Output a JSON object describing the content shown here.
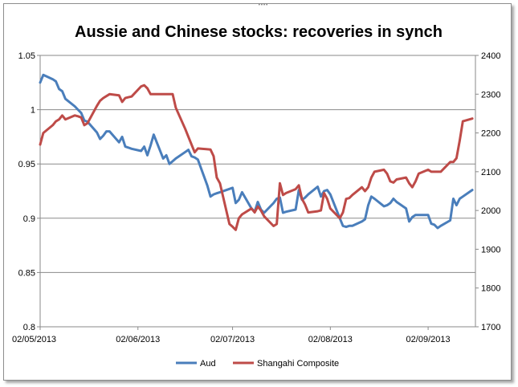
{
  "chart_data": {
    "type": "line",
    "title": "Aussie and Chinese stocks: recoveries in synch",
    "x_tick_labels": [
      "02/05/2013",
      "02/06/2013",
      "02/07/2013",
      "02/08/2013",
      "02/09/2013"
    ],
    "ylim_left": [
      0.8,
      1.05
    ],
    "ylim_right": [
      1700,
      2400
    ],
    "y_left_tick_labels": [
      "0.8",
      "0.85",
      "0.9",
      "0.95",
      "1",
      "1.05"
    ],
    "y_right_tick_labels": [
      "1700",
      "1800",
      "1900",
      "2000",
      "2100",
      "2200",
      "2300",
      "2400"
    ],
    "gridlines": "horizontal",
    "legend_position": "bottom",
    "series": [
      {
        "name": "Aud",
        "axis": "left",
        "color": "#4a7ebb",
        "points": [
          [
            "02/05/2013",
            1.025
          ],
          [
            "03/05/2013",
            1.032
          ],
          [
            "06/05/2013",
            1.028
          ],
          [
            "07/05/2013",
            1.026
          ],
          [
            "08/05/2013",
            1.019
          ],
          [
            "09/05/2013",
            1.017
          ],
          [
            "10/05/2013",
            1.01
          ],
          [
            "13/05/2013",
            1.003
          ],
          [
            "14/05/2013",
            1.0
          ],
          [
            "15/05/2013",
            0.997
          ],
          [
            "16/05/2013",
            0.99
          ],
          [
            "17/05/2013",
            0.989
          ],
          [
            "20/05/2013",
            0.979
          ],
          [
            "21/05/2013",
            0.973
          ],
          [
            "22/05/2013",
            0.976
          ],
          [
            "23/05/2013",
            0.98
          ],
          [
            "24/05/2013",
            0.98
          ],
          [
            "27/05/2013",
            0.97
          ],
          [
            "28/05/2013",
            0.975
          ],
          [
            "29/05/2013",
            0.966
          ],
          [
            "30/05/2013",
            0.965
          ],
          [
            "31/05/2013",
            0.964
          ],
          [
            "03/06/2013",
            0.962
          ],
          [
            "04/06/2013",
            0.966
          ],
          [
            "05/06/2013",
            0.958
          ],
          [
            "06/06/2013",
            0.967
          ],
          [
            "07/06/2013",
            0.977
          ],
          [
            "10/06/2013",
            0.955
          ],
          [
            "11/06/2013",
            0.958
          ],
          [
            "12/06/2013",
            0.95
          ],
          [
            "14/06/2013",
            0.955
          ],
          [
            "17/06/2013",
            0.961
          ],
          [
            "18/06/2013",
            0.963
          ],
          [
            "19/06/2013",
            0.957
          ],
          [
            "20/06/2013",
            0.956
          ],
          [
            "21/06/2013",
            0.954
          ],
          [
            "24/06/2013",
            0.93
          ],
          [
            "25/06/2013",
            0.92
          ],
          [
            "26/06/2013",
            0.922
          ],
          [
            "27/06/2013",
            0.923
          ],
          [
            "28/06/2013",
            0.924
          ],
          [
            "01/07/2013",
            0.927
          ],
          [
            "02/07/2013",
            0.928
          ],
          [
            "03/07/2013",
            0.914
          ],
          [
            "04/07/2013",
            0.917
          ],
          [
            "05/07/2013",
            0.924
          ],
          [
            "08/07/2013",
            0.909
          ],
          [
            "09/07/2013",
            0.906
          ],
          [
            "10/07/2013",
            0.915
          ],
          [
            "11/07/2013",
            0.908
          ],
          [
            "12/07/2013",
            0.905
          ],
          [
            "15/07/2013",
            0.914
          ],
          [
            "16/07/2013",
            0.918
          ],
          [
            "17/07/2013",
            0.919
          ],
          [
            "18/07/2013",
            0.905
          ],
          [
            "19/07/2013",
            0.906
          ],
          [
            "22/07/2013",
            0.908
          ],
          [
            "23/07/2013",
            0.926
          ],
          [
            "24/07/2013",
            0.917
          ],
          [
            "25/07/2013",
            0.919
          ],
          [
            "26/07/2013",
            0.922
          ],
          [
            "29/07/2013",
            0.929
          ],
          [
            "30/07/2013",
            0.92
          ],
          [
            "31/07/2013",
            0.925
          ],
          [
            "01/08/2013",
            0.926
          ],
          [
            "02/08/2013",
            0.922
          ],
          [
            "05/08/2013",
            0.9
          ],
          [
            "06/08/2013",
            0.893
          ],
          [
            "07/08/2013",
            0.892
          ],
          [
            "08/08/2013",
            0.893
          ],
          [
            "09/08/2013",
            0.893
          ],
          [
            "12/08/2013",
            0.897
          ],
          [
            "13/08/2013",
            0.899
          ],
          [
            "14/08/2013",
            0.912
          ],
          [
            "15/08/2013",
            0.92
          ],
          [
            "16/08/2013",
            0.918
          ],
          [
            "19/08/2013",
            0.911
          ],
          [
            "20/08/2013",
            0.912
          ],
          [
            "21/08/2013",
            0.914
          ],
          [
            "22/08/2013",
            0.918
          ],
          [
            "23/08/2013",
            0.915
          ],
          [
            "26/08/2013",
            0.909
          ],
          [
            "27/08/2013",
            0.897
          ],
          [
            "28/08/2013",
            0.901
          ],
          [
            "29/08/2013",
            0.903
          ],
          [
            "30/08/2013",
            0.903
          ],
          [
            "02/09/2013",
            0.903
          ],
          [
            "03/09/2013",
            0.895
          ],
          [
            "04/09/2013",
            0.894
          ],
          [
            "05/09/2013",
            0.891
          ],
          [
            "06/09/2013",
            0.893
          ],
          [
            "09/09/2013",
            0.898
          ],
          [
            "10/09/2013",
            0.918
          ],
          [
            "11/09/2013",
            0.912
          ],
          [
            "12/09/2013",
            0.918
          ],
          [
            "13/09/2013",
            0.92
          ],
          [
            "16/09/2013",
            0.926
          ]
        ]
      },
      {
        "name": "Shangahi Composite",
        "axis": "right",
        "color": "#be4b48",
        "points": [
          [
            "02/05/2013",
            2170
          ],
          [
            "03/05/2013",
            2200
          ],
          [
            "06/05/2013",
            2220
          ],
          [
            "07/05/2013",
            2230
          ],
          [
            "08/05/2013",
            2235
          ],
          [
            "09/05/2013",
            2245
          ],
          [
            "10/05/2013",
            2235
          ],
          [
            "13/05/2013",
            2245
          ],
          [
            "14/05/2013",
            2243
          ],
          [
            "15/05/2013",
            2240
          ],
          [
            "16/05/2013",
            2220
          ],
          [
            "17/05/2013",
            2225
          ],
          [
            "20/05/2013",
            2270
          ],
          [
            "21/05/2013",
            2283
          ],
          [
            "22/05/2013",
            2290
          ],
          [
            "23/05/2013",
            2295
          ],
          [
            "24/05/2013",
            2300
          ],
          [
            "27/05/2013",
            2297
          ],
          [
            "28/05/2013",
            2280
          ],
          [
            "29/05/2013",
            2290
          ],
          [
            "30/05/2013",
            2292
          ],
          [
            "31/05/2013",
            2294
          ],
          [
            "03/06/2013",
            2320
          ],
          [
            "04/06/2013",
            2323
          ],
          [
            "05/06/2013",
            2315
          ],
          [
            "06/06/2013",
            2300
          ],
          [
            "07/06/2013",
            2300
          ],
          [
            "13/06/2013",
            2300
          ],
          [
            "14/06/2013",
            2265
          ],
          [
            "17/06/2013",
            2210
          ],
          [
            "18/06/2013",
            2190
          ],
          [
            "19/06/2013",
            2170
          ],
          [
            "20/06/2013",
            2150
          ],
          [
            "21/06/2013",
            2160
          ],
          [
            "24/06/2013",
            2158
          ],
          [
            "25/06/2013",
            2157
          ],
          [
            "26/06/2013",
            2140
          ],
          [
            "27/06/2013",
            2085
          ],
          [
            "28/06/2013",
            2070
          ],
          [
            "01/07/2013",
            1965
          ],
          [
            "02/07/2013",
            1958
          ],
          [
            "03/07/2013",
            1950
          ],
          [
            "04/07/2013",
            1980
          ],
          [
            "05/07/2013",
            1990
          ],
          [
            "08/07/2013",
            2005
          ],
          [
            "09/07/2013",
            1995
          ],
          [
            "10/07/2013",
            2010
          ],
          [
            "11/07/2013",
            2000
          ],
          [
            "12/07/2013",
            1985
          ],
          [
            "15/07/2013",
            1960
          ],
          [
            "16/07/2013",
            1965
          ],
          [
            "17/07/2013",
            2070
          ],
          [
            "18/07/2013",
            2040
          ],
          [
            "19/07/2013",
            2045
          ],
          [
            "22/07/2013",
            2055
          ],
          [
            "23/07/2013",
            2065
          ],
          [
            "24/07/2013",
            2030
          ],
          [
            "25/07/2013",
            2015
          ],
          [
            "26/07/2013",
            1995
          ],
          [
            "29/07/2013",
            1998
          ],
          [
            "30/07/2013",
            2000
          ],
          [
            "31/07/2013",
            2045
          ],
          [
            "01/08/2013",
            2030
          ],
          [
            "02/08/2013",
            2005
          ],
          [
            "05/08/2013",
            1980
          ],
          [
            "06/08/2013",
            1995
          ],
          [
            "07/08/2013",
            2030
          ],
          [
            "08/08/2013",
            2032
          ],
          [
            "09/08/2013",
            2040
          ],
          [
            "12/08/2013",
            2060
          ],
          [
            "13/08/2013",
            2050
          ],
          [
            "14/08/2013",
            2060
          ],
          [
            "15/08/2013",
            2085
          ],
          [
            "16/08/2013",
            2100
          ],
          [
            "19/08/2013",
            2105
          ],
          [
            "20/08/2013",
            2095
          ],
          [
            "21/08/2013",
            2075
          ],
          [
            "22/08/2013",
            2072
          ],
          [
            "23/08/2013",
            2080
          ],
          [
            "26/08/2013",
            2085
          ],
          [
            "27/08/2013",
            2070
          ],
          [
            "28/08/2013",
            2060
          ],
          [
            "29/08/2013",
            2075
          ],
          [
            "30/08/2013",
            2095
          ],
          [
            "02/09/2013",
            2105
          ],
          [
            "03/09/2013",
            2100
          ],
          [
            "04/09/2013",
            2100
          ],
          [
            "05/09/2013",
            2100
          ],
          [
            "06/09/2013",
            2100
          ],
          [
            "09/09/2013",
            2125
          ],
          [
            "10/09/2013",
            2125
          ],
          [
            "11/09/2013",
            2135
          ],
          [
            "12/09/2013",
            2180
          ],
          [
            "13/09/2013",
            2230
          ],
          [
            "16/09/2013",
            2237
          ]
        ]
      }
    ]
  }
}
